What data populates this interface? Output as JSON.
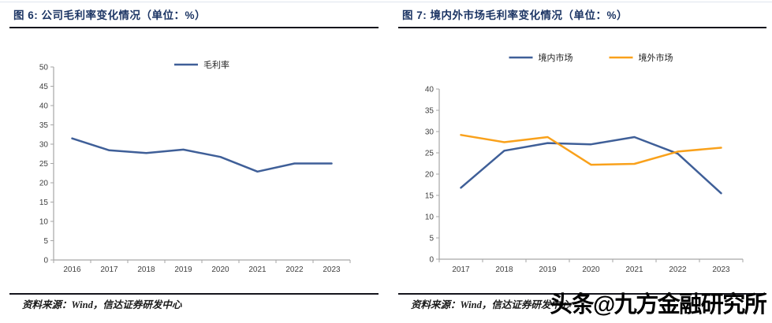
{
  "figures": [
    {
      "title": "图 6: 公司毛利率变化情况（单位：%）",
      "source": "资料来源：Wind，信达证券研发中心"
    },
    {
      "title": "图 7: 境内外市场毛利率变化情况（单位：%）",
      "source": "资料来源：Wind，信达证券研发中心"
    }
  ],
  "watermark": {
    "text": "头条@九方金融研究所",
    "color": "#000000"
  },
  "colors": {
    "title_navy": "#1c3564",
    "rule_dark": "#15151d",
    "line_blue": "#3f5f98",
    "line_orange": "#f9a11b",
    "axis_gray": "#a6a6a6",
    "tick_text": "#404040"
  },
  "chart_data": [
    {
      "type": "line",
      "title": "公司毛利率变化情况",
      "unit": "%",
      "categories": [
        "2016",
        "2017",
        "2018",
        "2019",
        "2020",
        "2021",
        "2022",
        "2023"
      ],
      "series": [
        {
          "name": "毛利率",
          "color": "#3f5f98",
          "values": [
            31.5,
            28.4,
            27.7,
            28.6,
            26.7,
            22.9,
            25.0,
            25.0
          ]
        }
      ],
      "ylim": [
        0,
        50
      ],
      "ytick": 5,
      "legend": "top",
      "grid": false
    },
    {
      "type": "line",
      "title": "境内外市场毛利率变化情况",
      "unit": "%",
      "categories": [
        "2017",
        "2018",
        "2019",
        "2020",
        "2021",
        "2022",
        "2023"
      ],
      "series": [
        {
          "name": "境内市场",
          "color": "#3f5f98",
          "values": [
            16.8,
            25.5,
            27.3,
            27.0,
            28.7,
            24.8,
            15.5
          ]
        },
        {
          "name": "境外市场",
          "color": "#f9a11b",
          "values": [
            29.2,
            27.5,
            28.7,
            22.2,
            22.4,
            25.3,
            26.2
          ]
        }
      ],
      "ylim": [
        0,
        40
      ],
      "ytick": 5,
      "legend": "top",
      "grid": false
    }
  ]
}
